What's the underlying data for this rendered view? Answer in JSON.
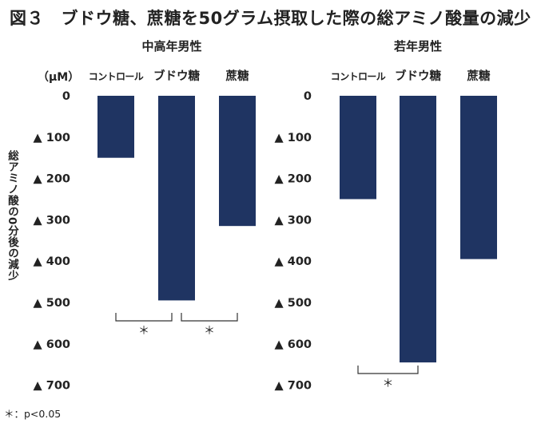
{
  "title": "図３　ブドウ糖、蔗糖を50グラム摂取した際の総アミノ酸量の減少",
  "y_axis_label": "総アミノ酸の0分後の減少",
  "unit_label": "（μM）",
  "footnote": "＊：p<0.05",
  "colors": {
    "bar": "#1f3462",
    "bracket": "#333333"
  },
  "chart_data": [
    {
      "type": "bar",
      "title": "中高年男性",
      "categories": [
        "コントロール",
        "ブドウ糖",
        "蔗糖"
      ],
      "values": [
        -150,
        -495,
        -315
      ],
      "ylim": [
        -700,
        0
      ],
      "tick_labels": [
        "0",
        "▲ 100",
        "▲ 200",
        "▲ 300",
        "▲ 400",
        "▲ 500",
        "▲ 600",
        "▲ 700"
      ],
      "tick_values": [
        0,
        -100,
        -200,
        -300,
        -400,
        -500,
        -600,
        -700
      ],
      "significance": [
        {
          "from": 0,
          "to": 1,
          "label": "＊"
        },
        {
          "from": 1,
          "to": 2,
          "label": "＊"
        }
      ]
    },
    {
      "type": "bar",
      "title": "若年男性",
      "categories": [
        "コントロール",
        "ブドウ糖",
        "蔗糖"
      ],
      "values": [
        -250,
        -645,
        -395
      ],
      "ylim": [
        -700,
        0
      ],
      "tick_labels": [
        "0",
        "▲ 100",
        "▲ 200",
        "▲ 300",
        "▲ 400",
        "▲ 500",
        "▲ 600",
        "▲ 700"
      ],
      "tick_values": [
        0,
        -100,
        -200,
        -300,
        -400,
        -500,
        -600,
        -700
      ],
      "significance": [
        {
          "from": 0,
          "to": 1,
          "label": "＊"
        }
      ]
    }
  ]
}
